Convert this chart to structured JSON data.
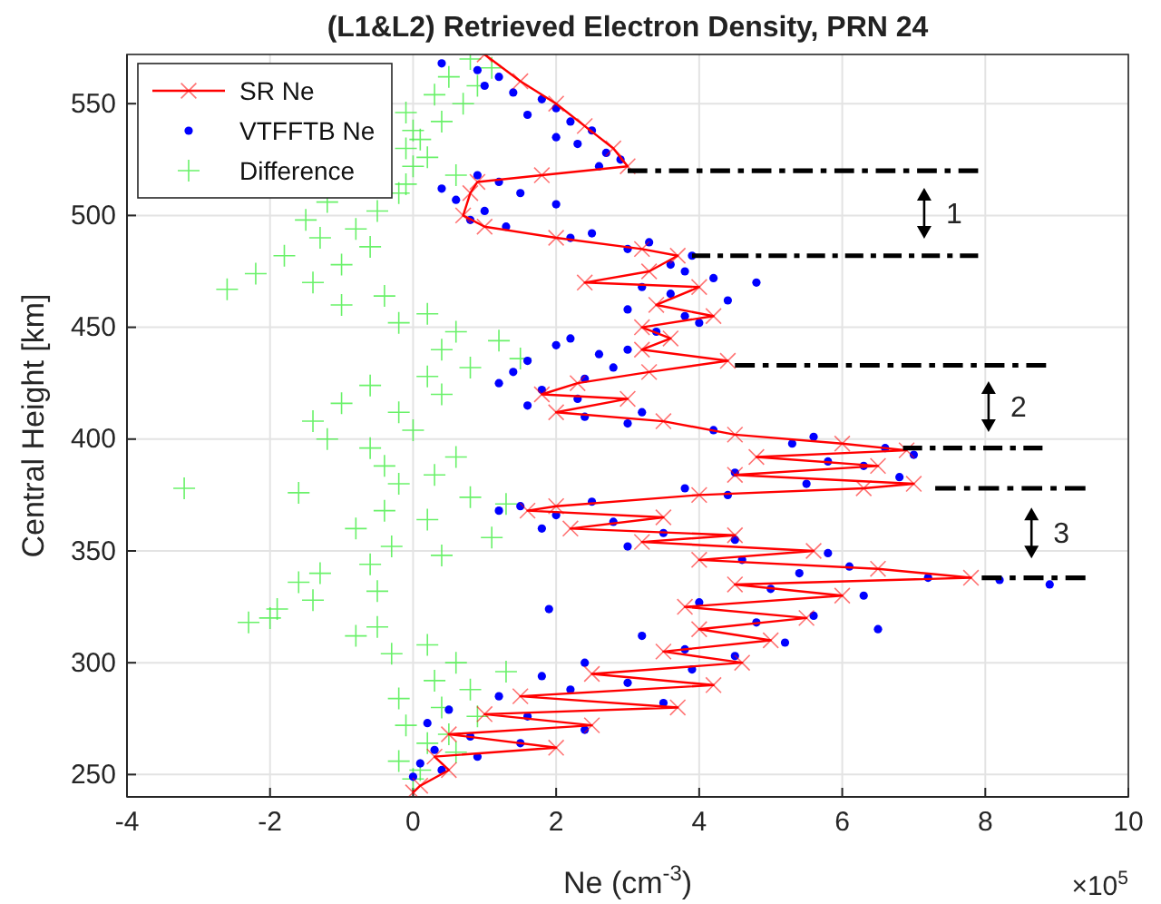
{
  "chart_data": {
    "type": "scatter",
    "title": "(L1&L2) Retrieved Electron Density, PRN 24",
    "xlabel": "Ne (cm$^{-3}$)",
    "ylabel": "Central Height [km]",
    "xlim": [
      -4,
      10
    ],
    "xticks": [
      -4,
      -2,
      0,
      2,
      4,
      6,
      8,
      10
    ],
    "ylim": [
      240,
      572
    ],
    "yticks": [
      250,
      300,
      350,
      400,
      450,
      500,
      550
    ],
    "grid": true,
    "legend": "top left",
    "annotations": [
      "×10$^{5}$",
      "1",
      "2",
      "3"
    ],
    "series": [
      {
        "name": "SR Ne",
        "type": "line",
        "color": "#ff0000",
        "marker": "cross",
        "line_style": "solid",
        "values": [
          572,
          560,
          550,
          540,
          530,
          522,
          518,
          515,
          510,
          500,
          495,
          490,
          485,
          482,
          475,
          470,
          468,
          460,
          455,
          450,
          445,
          440,
          435,
          430,
          425,
          420,
          418,
          412,
          408,
          402,
          398,
          395,
          392,
          388,
          384,
          380,
          378,
          375,
          370,
          368,
          365,
          360,
          357,
          354,
          350,
          346,
          342,
          338,
          335,
          330,
          325,
          320,
          315,
          310,
          305,
          300,
          295,
          290,
          285,
          280,
          277,
          272,
          268,
          262,
          258,
          252,
          245,
          242
        ],
        "x": [
          1.0,
          1.5,
          2.0,
          2.4,
          2.8,
          3.0,
          1.8,
          0.9,
          0.8,
          0.7,
          1.0,
          2.0,
          3.2,
          3.7,
          3.3,
          2.4,
          4.0,
          3.4,
          4.2,
          3.2,
          3.6,
          3.2,
          4.4,
          3.3,
          2.3,
          1.8,
          3.0,
          2.0,
          3.5,
          4.5,
          6.0,
          6.9,
          4.8,
          6.5,
          4.5,
          7.0,
          6.3,
          4.0,
          2.0,
          1.6,
          3.5,
          2.2,
          4.5,
          3.2,
          5.6,
          4.0,
          6.5,
          7.8,
          4.5,
          6.0,
          3.8,
          5.5,
          4.0,
          5.0,
          3.5,
          4.6,
          2.5,
          4.2,
          1.5,
          3.7,
          1.0,
          2.5,
          0.5,
          2.0,
          0.3,
          0.5,
          0.1,
          0.0
        ]
      },
      {
        "name": "VTFFTB Ne",
        "color": "#0000ff",
        "marker": "circle",
        "values": [
          568,
          565,
          562,
          558,
          555,
          552,
          548,
          545,
          542,
          538,
          535,
          532,
          528,
          525,
          522,
          518,
          515,
          512,
          510,
          507,
          505,
          502,
          498,
          495,
          492,
          490,
          488,
          485,
          482,
          478,
          475,
          472,
          470,
          468,
          465,
          462,
          458,
          455,
          452,
          448,
          445,
          442,
          440,
          438,
          435,
          432,
          430,
          427,
          425,
          422,
          418,
          415,
          412,
          410,
          407,
          404,
          401,
          398,
          396,
          393,
          390,
          388,
          385,
          383,
          380,
          378,
          375,
          372,
          370,
          368,
          366,
          363,
          360,
          358,
          355,
          352,
          349,
          346,
          343,
          340,
          338,
          337,
          335,
          333,
          330,
          327,
          324,
          321,
          318,
          315,
          312,
          309,
          306,
          303,
          300,
          297,
          294,
          291,
          288,
          285,
          282,
          279,
          276,
          273,
          270,
          267,
          264,
          261,
          258,
          255,
          252,
          249
        ],
        "x": [
          0.4,
          0.9,
          1.2,
          1.0,
          1.4,
          1.8,
          2.0,
          1.6,
          2.2,
          2.5,
          2.0,
          2.3,
          2.7,
          2.9,
          2.6,
          0.9,
          1.2,
          0.4,
          1.5,
          0.6,
          2.0,
          1.0,
          0.8,
          1.3,
          2.5,
          2.2,
          3.3,
          3.0,
          3.9,
          3.6,
          3.8,
          4.2,
          4.8,
          3.2,
          3.6,
          4.4,
          3.0,
          3.8,
          4.0,
          3.4,
          2.2,
          2.0,
          3.0,
          2.6,
          1.6,
          2.8,
          1.4,
          2.4,
          1.2,
          1.8,
          2.3,
          1.6,
          3.2,
          2.4,
          3.0,
          4.2,
          5.6,
          5.3,
          6.6,
          7.0,
          5.8,
          6.3,
          4.5,
          6.8,
          5.5,
          3.8,
          4.4,
          2.5,
          1.5,
          1.2,
          2.0,
          2.8,
          1.8,
          3.5,
          4.5,
          3.0,
          5.8,
          4.6,
          6.1,
          5.4,
          7.2,
          8.2,
          8.9,
          5.0,
          6.3,
          4.0,
          1.9,
          5.6,
          4.8,
          6.5,
          3.2,
          5.2,
          3.8,
          4.5,
          2.4,
          3.9,
          1.8,
          3.0,
          2.2,
          1.2,
          3.5,
          0.5,
          1.6,
          0.2,
          2.4,
          0.8,
          1.5,
          0.3,
          0.9,
          0.1,
          0.4,
          0.0
        ]
      },
      {
        "name": "Difference",
        "color": "#44ee44",
        "marker": "cross",
        "values": [
          570,
          566,
          562,
          558,
          554,
          550,
          546,
          542,
          538,
          534,
          530,
          526,
          522,
          518,
          514,
          510,
          506,
          502,
          498,
          494,
          490,
          486,
          482,
          478,
          474,
          470,
          467,
          464,
          460,
          456,
          452,
          448,
          444,
          440,
          436,
          432,
          428,
          424,
          420,
          416,
          412,
          408,
          404,
          400,
          396,
          392,
          388,
          384,
          380,
          378,
          376,
          374,
          371,
          368,
          364,
          360,
          356,
          352,
          348,
          344,
          340,
          336,
          332,
          328,
          324,
          320,
          318,
          316,
          312,
          308,
          304,
          300,
          296,
          292,
          288,
          284,
          280,
          276,
          272,
          268,
          264,
          260,
          256,
          252,
          248
        ],
        "x": [
          0.8,
          1.1,
          0.5,
          0.9,
          0.3,
          0.7,
          -0.1,
          0.4,
          0.0,
          0.1,
          -0.1,
          0.2,
          0.0,
          0.6,
          -0.1,
          -0.2,
          -1.2,
          -0.5,
          -1.5,
          -0.8,
          -1.3,
          -0.6,
          -1.8,
          -1.0,
          -2.2,
          -1.4,
          -2.6,
          -0.4,
          -1.0,
          0.2,
          -0.2,
          0.6,
          1.2,
          0.4,
          1.5,
          0.8,
          0.2,
          -0.6,
          0.4,
          -1.0,
          -0.2,
          -1.4,
          0.0,
          -1.2,
          -0.6,
          0.6,
          -0.4,
          0.3,
          -0.2,
          -3.2,
          -1.6,
          0.8,
          1.3,
          -0.4,
          0.2,
          -0.8,
          1.1,
          -0.3,
          0.4,
          -0.6,
          -1.3,
          -1.6,
          -0.5,
          -1.4,
          -1.9,
          -2.0,
          -2.3,
          -0.5,
          -0.8,
          0.2,
          -0.3,
          0.6,
          1.3,
          0.3,
          0.8,
          -0.2,
          0.4,
          0.9,
          -0.1,
          0.5,
          0.2,
          0.6,
          -0.2,
          0.1,
          0.0
        ]
      },
      {
        "type": "line",
        "color": "#000000",
        "marker": "none",
        "line_style": "dashed",
        "x": [
          3.0,
          7.9
        ],
        "values": [
          520,
          520
        ]
      },
      {
        "type": "line",
        "color": "#000000",
        "marker": "none",
        "line_style": "dashed",
        "x": [
          3.9,
          7.9
        ],
        "values": [
          482,
          482
        ]
      },
      {
        "type": "line",
        "color": "#000000",
        "marker": "none",
        "line_style": "dashed",
        "x": [
          4.5,
          8.85
        ],
        "values": [
          433,
          433
        ]
      },
      {
        "type": "line",
        "color": "#000000",
        "marker": "none",
        "line_style": "dashed",
        "x": [
          6.85,
          8.8
        ],
        "values": [
          396,
          396
        ]
      },
      {
        "type": "line",
        "color": "#000000",
        "marker": "none",
        "line_style": "dashed",
        "x": [
          7.3,
          9.4
        ],
        "values": [
          378,
          378
        ]
      },
      {
        "type": "line",
        "color": "#000000",
        "marker": "none",
        "line_style": "dashed",
        "x": [
          7.95,
          9.4
        ],
        "values": [
          338,
          338
        ]
      }
    ]
  }
}
